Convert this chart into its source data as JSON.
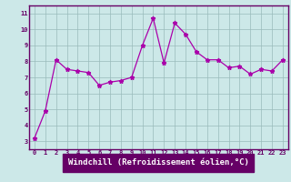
{
  "x": [
    0,
    1,
    2,
    3,
    4,
    5,
    6,
    7,
    8,
    9,
    10,
    11,
    12,
    13,
    14,
    15,
    16,
    17,
    18,
    19,
    20,
    21,
    22,
    23
  ],
  "y": [
    3.2,
    4.9,
    8.1,
    7.5,
    7.4,
    7.3,
    6.5,
    6.7,
    6.8,
    7.0,
    9.0,
    10.7,
    7.9,
    10.4,
    9.7,
    8.6,
    8.1,
    8.1,
    7.6,
    7.7,
    7.2,
    7.5,
    7.4,
    8.1
  ],
  "line_color": "#aa00aa",
  "marker": "*",
  "marker_size": 3.5,
  "bg_color": "#cce8e8",
  "grid_color": "#99bbbb",
  "xlabel": "Windchill (Refroidissement éolien,°C)",
  "ylabel": "",
  "yticks": [
    3,
    4,
    5,
    6,
    7,
    8,
    9,
    10,
    11
  ],
  "xticks": [
    0,
    1,
    2,
    3,
    4,
    5,
    6,
    7,
    8,
    9,
    10,
    11,
    12,
    13,
    14,
    15,
    16,
    17,
    18,
    19,
    20,
    21,
    22,
    23
  ],
  "xlim": [
    -0.5,
    23.5
  ],
  "ylim": [
    2.5,
    11.5
  ],
  "tick_label_fontsize": 5.0,
  "xlabel_fontsize": 6.5,
  "plot_color": "#660066",
  "xlabel_bg": "#660066",
  "xlabel_fg": "#ffffff"
}
